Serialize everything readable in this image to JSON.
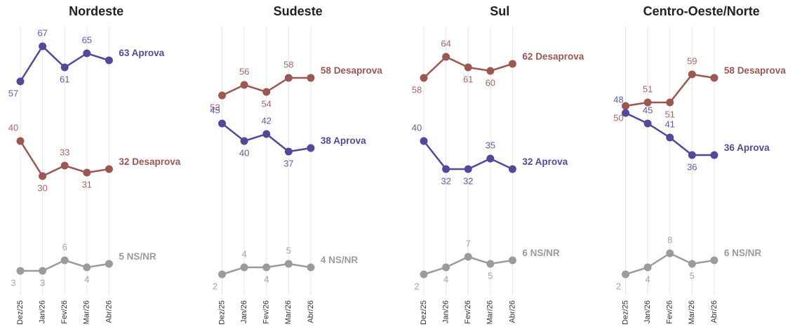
{
  "chart_data": [
    {
      "type": "line",
      "title": "Nordeste",
      "categories": [
        "Dez/25",
        "Jan/26",
        "Fev/26",
        "Mar/26",
        "Abr/26"
      ],
      "ylim": [
        0,
        70
      ],
      "series": [
        {
          "name": "Aprova",
          "color": "#56479b",
          "values": [
            57,
            67,
            61,
            65,
            63
          ]
        },
        {
          "name": "Desaprova",
          "color": "#9c5752",
          "values": [
            40,
            30,
            33,
            31,
            32
          ]
        },
        {
          "name": "NS/NR",
          "color": "#9b9b9b",
          "values": [
            3,
            3,
            6,
            4,
            5
          ]
        }
      ]
    },
    {
      "type": "line",
      "title": "Sudeste",
      "categories": [
        "Dez/25",
        "Jan/26",
        "Fev/26",
        "Mar/26",
        "Abr/26"
      ],
      "ylim": [
        0,
        70
      ],
      "series": [
        {
          "name": "Desaprova",
          "color": "#9c5752",
          "values": [
            53,
            56,
            54,
            58,
            58
          ]
        },
        {
          "name": "Aprova",
          "color": "#56479b",
          "values": [
            45,
            40,
            42,
            37,
            38
          ]
        },
        {
          "name": "NS/NR",
          "color": "#9b9b9b",
          "values": [
            2,
            4,
            4,
            5,
            4
          ]
        }
      ]
    },
    {
      "type": "line",
      "title": "Sul",
      "categories": [
        "Dez/25",
        "Jan/26",
        "Fev/26",
        "Mar/26",
        "Abr/26"
      ],
      "ylim": [
        0,
        70
      ],
      "series": [
        {
          "name": "Desaprova",
          "color": "#9c5752",
          "values": [
            58,
            64,
            61,
            60,
            62
          ]
        },
        {
          "name": "Aprova",
          "color": "#56479b",
          "values": [
            40,
            32,
            32,
            35,
            32
          ]
        },
        {
          "name": "NS/NR",
          "color": "#9b9b9b",
          "values": [
            2,
            4,
            7,
            5,
            6
          ]
        }
      ]
    },
    {
      "type": "line",
      "title": "Centro-Oeste/Norte",
      "categories": [
        "Dez/25",
        "Jan/26",
        "Fev/26",
        "Mar/26",
        "Abr/26"
      ],
      "ylim": [
        0,
        70
      ],
      "series": [
        {
          "name": "Desaprova",
          "color": "#9c5752",
          "values": [
            50,
            51,
            51,
            59,
            58
          ]
        },
        {
          "name": "Aprova",
          "color": "#56479b",
          "values": [
            48,
            45,
            41,
            36,
            36
          ]
        },
        {
          "name": "NS/NR",
          "color": "#9b9b9b",
          "values": [
            2,
            4,
            8,
            5,
            6
          ]
        }
      ]
    }
  ]
}
